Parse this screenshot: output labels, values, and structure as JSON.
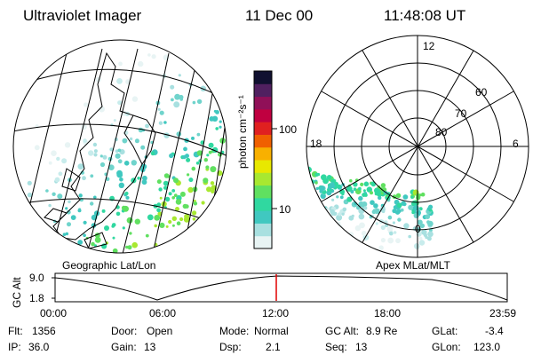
{
  "header": {
    "instrument": "Ultraviolet Imager",
    "date": "11 Dec 00",
    "time": "11:48:08 UT"
  },
  "left_panel": {
    "caption": "Geographic Lat/Lon"
  },
  "right_panel": {
    "caption": "Apex MLat/MLT",
    "mlt_labels": [
      "12",
      "18",
      "6",
      "0"
    ],
    "mlat_labels": [
      "60",
      "70",
      "80"
    ]
  },
  "colorbar": {
    "unit_label": "photon cm⁻²s⁻¹",
    "tick_labels": [
      "100",
      "10"
    ],
    "scale": "log",
    "colors": [
      "#e8f4f4",
      "#a8e0e0",
      "#40c8c0",
      "#30d8a0",
      "#60e060",
      "#a8e830",
      "#e8e800",
      "#f8b000",
      "#f06000",
      "#e02020",
      "#c00040",
      "#901058",
      "#502060",
      "#101030"
    ]
  },
  "altitude_plot": {
    "ylabel": "GC Alt",
    "ytick_labels": [
      "9.0",
      "1.8"
    ],
    "xtick_labels": [
      "00:00",
      "06:00",
      "12:00",
      "18:00",
      "23:59"
    ],
    "current_time_marker_color": "#e00000"
  },
  "status": {
    "flt": {
      "label": "Flt:",
      "value": "1356"
    },
    "ip": {
      "label": "IP:",
      "value": "36.0"
    },
    "door": {
      "label": "Door:",
      "value": "Open"
    },
    "gain": {
      "label": "Gain:",
      "value": "13"
    },
    "mode": {
      "label": "Mode:",
      "value": "Normal"
    },
    "dsp": {
      "label": "Dsp:",
      "value": "2.1"
    },
    "gcalt": {
      "label": "GC Alt:",
      "value": "8.9 Re"
    },
    "seq": {
      "label": "Seq:",
      "value": "13"
    },
    "glat": {
      "label": "GLat:",
      "value": "-3.4"
    },
    "glon": {
      "label": "GLon:",
      "value": "123.0"
    }
  }
}
